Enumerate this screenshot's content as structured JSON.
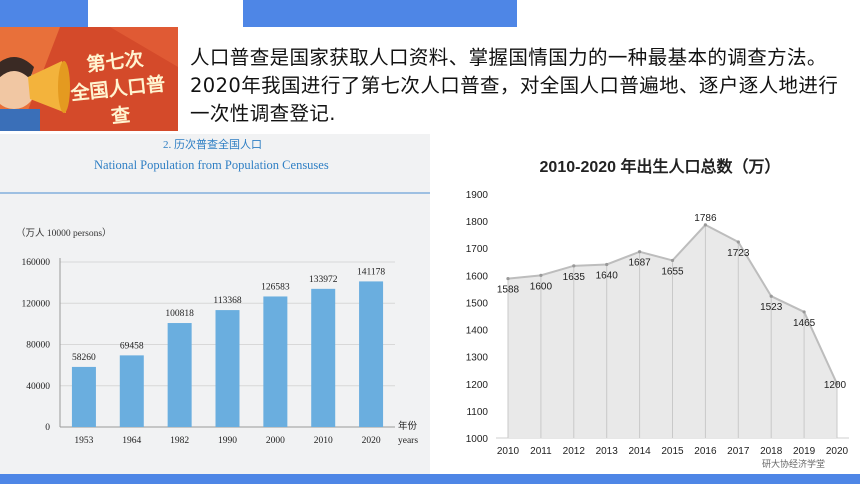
{
  "intro_text": "人口普查是国家获取人口资料、掌握国情国力的一种最基本的调查方法。2020年我国进行了第七次人口普查，对全国人口普遍地、逐户逐人地进行一次性调查登记.",
  "banner": {
    "line1": "第七次",
    "line2": "全国人口普查"
  },
  "watermark": "研大协经济学堂",
  "colors": {
    "accent": "#4e86e6",
    "bar": "#6aaedf",
    "line": "#bdbdbd",
    "area": "#e9e9e9"
  },
  "chart_data": [
    {
      "type": "bar",
      "title": "2. 历次普查全国人口",
      "subtitle": "National Population from Population Censuses",
      "unit_label": "（万人 10000 persons）",
      "xlabel": "年份",
      "xlabel_en": "years",
      "categories": [
        "1953",
        "1964",
        "1982",
        "1990",
        "2000",
        "2010",
        "2020"
      ],
      "values": [
        58260,
        69458,
        100818,
        113368,
        126583,
        133972,
        141178
      ],
      "ylim": [
        0,
        160000
      ],
      "yticks": [
        "0",
        "40000",
        "80000",
        "120000",
        "160000"
      ]
    },
    {
      "type": "line",
      "title": "2010-2020 年出生人口总数（万）",
      "categories": [
        "2010",
        "2011",
        "2012",
        "2013",
        "2014",
        "2015",
        "2016",
        "2017",
        "2018",
        "2019",
        "2020"
      ],
      "values": [
        1588,
        1600,
        1635,
        1640,
        1687,
        1655,
        1786,
        1723,
        1523,
        1465,
        1200
      ],
      "ylim": [
        1000,
        1900
      ],
      "yticks": [
        "1000",
        "1100",
        "1200",
        "1300",
        "1400",
        "1500",
        "1600",
        "1700",
        "1800",
        "1900"
      ]
    }
  ]
}
